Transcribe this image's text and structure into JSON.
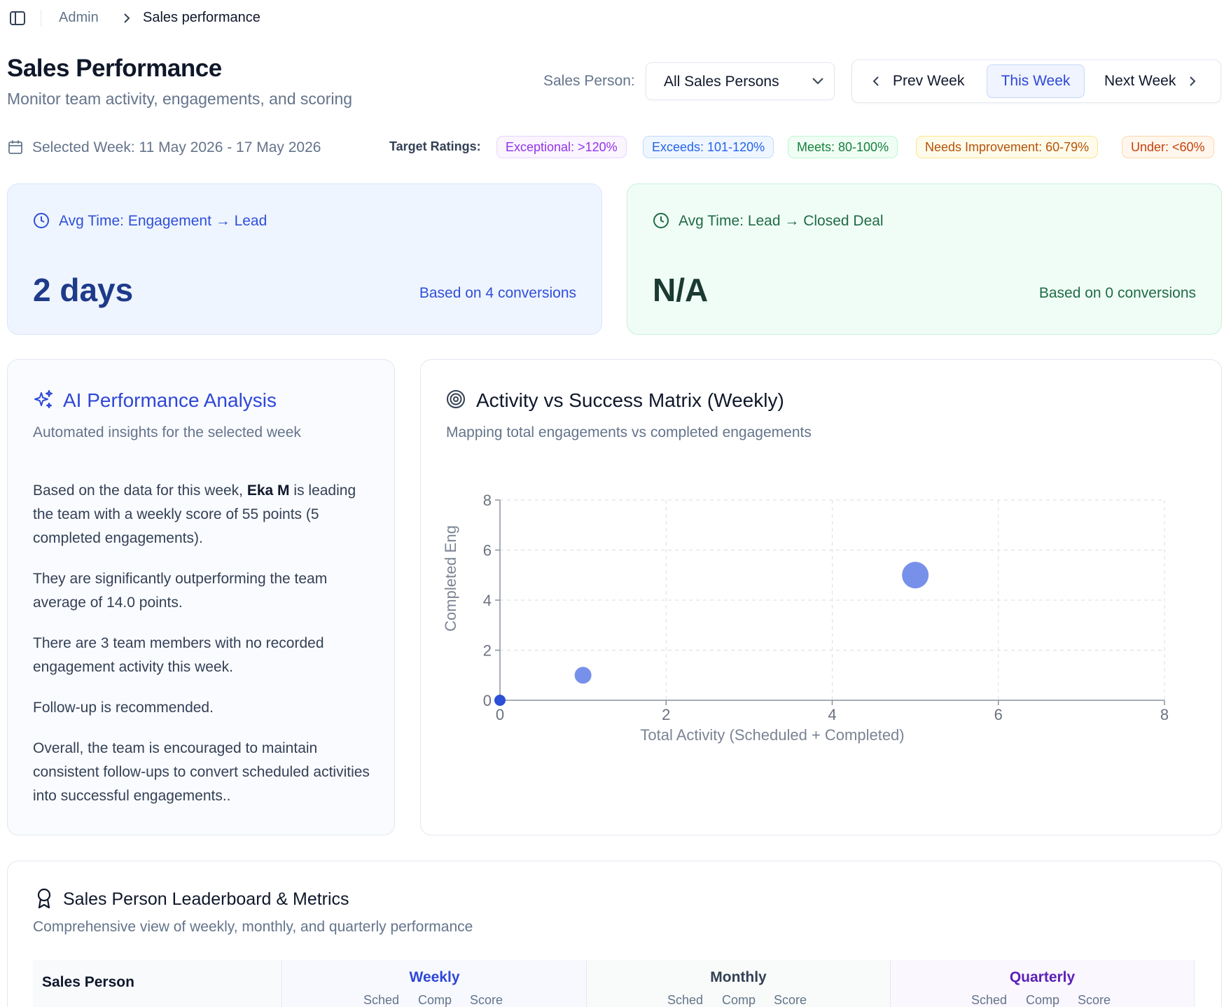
{
  "breadcrumb": {
    "parent": "Admin",
    "current": "Sales performance"
  },
  "header": {
    "title": "Sales Performance",
    "subtitle": "Monitor team activity, engagements, and scoring",
    "sales_person_label": "Sales Person:",
    "sales_person_value": "All Sales Persons",
    "prev_week": "Prev Week",
    "this_week": "This Week",
    "next_week": "Next Week"
  },
  "week": {
    "selected": "Selected Week: 11 May 2026 - 17 May 2026"
  },
  "target_ratings": {
    "label": "Target Ratings:",
    "items": [
      {
        "label": "Exceptional: >120%",
        "color": "#9333ea"
      },
      {
        "label": "Exceeds: 101-120%",
        "color": "#2563eb"
      },
      {
        "label": "Meets: 80-100%",
        "color": "#15803d"
      },
      {
        "label": "Needs Improvement: 60-79%",
        "color": "#b45309"
      },
      {
        "label": "Under: <60%",
        "color": "#c2410c"
      }
    ]
  },
  "kpis": [
    {
      "title": "Avg Time: Engagement → Lead",
      "value": "2 days",
      "note": "Based on 4 conversions"
    },
    {
      "title": "Avg Time: Lead → Closed Deal",
      "value": "N/A",
      "note": "Based on 0 conversions"
    }
  ],
  "ai": {
    "title": "AI Performance Analysis",
    "subtitle": "Automated insights for the selected week",
    "p1_pre": "Based on the data for this week, ",
    "p1_name": "Eka M",
    "p1_post": " is leading the team with a weekly score of 55 points (5 completed engagements).",
    "p2": "They are significantly outperforming the team average of 14.0 points.",
    "p3": "There are 3 team members with no recorded engagement activity this week.",
    "p4": "Follow-up is recommended.",
    "p5": "Overall, the team is encouraged to maintain consistent follow-ups to convert scheduled activities into successful engagements.."
  },
  "matrix": {
    "title": "Activity vs Success Matrix (Weekly)",
    "subtitle": "Mapping total engagements vs completed engagements"
  },
  "chart_data": {
    "type": "scatter",
    "xlabel": "Total Activity (Scheduled + Completed)",
    "ylabel": "Completed Eng",
    "xlim": [
      0,
      8
    ],
    "ylim": [
      0,
      8
    ],
    "xticks": [
      "0",
      "2",
      "4",
      "6",
      "8"
    ],
    "yticks": [
      "0",
      "2",
      "4",
      "6",
      "8"
    ],
    "grid": true,
    "points": [
      {
        "x": 5,
        "y": 5,
        "size": "large"
      },
      {
        "x": 1,
        "y": 1,
        "size": "medium"
      },
      {
        "x": 0,
        "y": 0,
        "size": "small"
      }
    ],
    "point_color": "#6b88e8"
  },
  "leaderboard": {
    "title": "Sales Person Leaderboard & Metrics",
    "subtitle": "Comprehensive view of weekly, monthly, and quarterly performance",
    "name_header": "Sales Person",
    "groups": [
      {
        "title": "Weekly",
        "cols": [
          "Sched",
          "Comp",
          "Score"
        ]
      },
      {
        "title": "Monthly",
        "cols": [
          "Sched",
          "Comp",
          "Score"
        ]
      },
      {
        "title": "Quarterly",
        "cols": [
          "Sched",
          "Comp",
          "Score"
        ]
      }
    ]
  }
}
